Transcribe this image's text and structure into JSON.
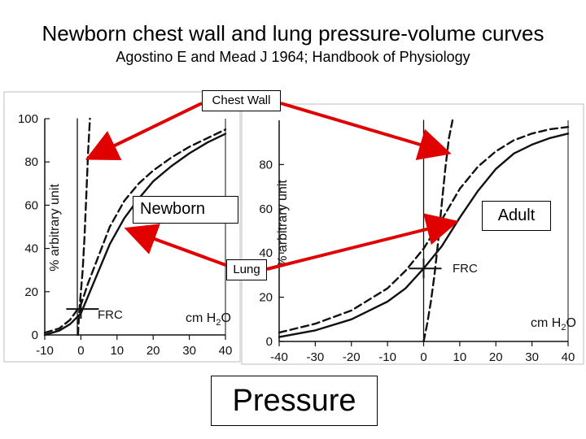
{
  "slide": {
    "title": "Newborn chest wall and lung pressure-volume curves",
    "subtitle": "Agostino E and Mead J 1964; Handbook of Physiology"
  },
  "labels": {
    "chest_wall": "Chest Wall",
    "newborn": "Newborn",
    "adult": "Adult",
    "lung": "Lung",
    "pressure": "Pressure"
  },
  "colors": {
    "arrow": "#e00000",
    "curve": "#111111",
    "panel": "#ffffff"
  },
  "chart_data": [
    {
      "type": "line",
      "panel": "newborn",
      "ylabel": "% arbitrary unit",
      "unit_label": "cm H2O",
      "frc_label": "FRC",
      "xlim": [
        -10,
        40
      ],
      "ylim": [
        0,
        100
      ],
      "x_ticks": [
        "-10",
        "0",
        "10",
        "20",
        "30",
        "40"
      ],
      "y_ticks": [
        "0",
        "20",
        "40",
        "60",
        "80",
        "100"
      ],
      "series": [
        {
          "style": "solid",
          "x": [
            -10,
            -6,
            -3,
            0,
            2,
            5,
            8,
            12,
            16,
            20,
            25,
            30,
            35,
            40
          ],
          "y": [
            0,
            2,
            5,
            10,
            18,
            30,
            42,
            54,
            63,
            71,
            78,
            84,
            89,
            93
          ]
        },
        {
          "style": "dashed",
          "x": [
            -10,
            -6,
            -3,
            0,
            2,
            5,
            8,
            12,
            16,
            20,
            25,
            30,
            35,
            40
          ],
          "y": [
            1,
            3,
            7,
            14,
            24,
            37,
            50,
            62,
            70,
            76,
            82,
            87,
            91,
            95
          ]
        },
        {
          "style": "dashed",
          "x": [
            -0.8,
            -0.5,
            0,
            0.5,
            1,
            1.5,
            2,
            2.5
          ],
          "y": [
            0,
            10,
            20,
            30,
            45,
            65,
            85,
            100
          ]
        },
        {
          "style": "solid",
          "x": [
            -1,
            -1
          ],
          "y": [
            100,
            0
          ]
        }
      ],
      "frc": {
        "x": 0,
        "y": 12
      }
    },
    {
      "type": "line",
      "panel": "adult",
      "ylabel": "% arbitrary unit",
      "unit_label": "cm H2O",
      "frc_label": "FRC",
      "xlim": [
        -40,
        40
      ],
      "ylim": [
        0,
        100
      ],
      "x_ticks": [
        "-40",
        "-30",
        "-20",
        "-10",
        "0",
        "10",
        "20",
        "30",
        "40"
      ],
      "y_ticks": [
        "0",
        "20",
        "40",
        "60",
        "80"
      ],
      "series": [
        {
          "style": "solid",
          "x": [
            -40,
            -30,
            -20,
            -10,
            -5,
            0,
            5,
            10,
            15,
            20,
            25,
            30,
            35,
            40
          ],
          "y": [
            2,
            5,
            10,
            18,
            24,
            33,
            43,
            56,
            68,
            78,
            85,
            89,
            92,
            94
          ]
        },
        {
          "style": "dashed",
          "x": [
            -40,
            -30,
            -20,
            -10,
            -5,
            0,
            5,
            10,
            15,
            20,
            25,
            30,
            35,
            40
          ],
          "y": [
            4,
            8,
            14,
            24,
            32,
            42,
            55,
            69,
            79,
            86,
            91,
            94,
            96,
            97
          ]
        },
        {
          "style": "dashed",
          "x": [
            0,
            1,
            2,
            3,
            4,
            5,
            6,
            7,
            8
          ],
          "y": [
            0,
            8,
            18,
            30,
            45,
            62,
            78,
            92,
            100
          ]
        },
        {
          "style": "solid",
          "x": [
            0,
            0
          ],
          "y": [
            100,
            0
          ]
        }
      ],
      "frc": {
        "x": 0,
        "y": 33
      }
    }
  ]
}
